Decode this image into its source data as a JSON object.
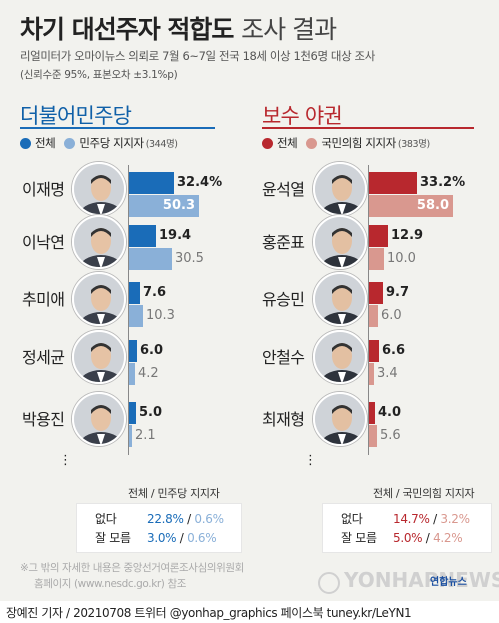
{
  "header": {
    "title_bold": "차기 대선주자 적합도",
    "title_light": "조사 결과",
    "subtitle": "리얼미터가 오마이뉴스 의뢰로 7월 6~7일 전국 18세 이상 1천6명 대상 조사",
    "confidence": "(신뢰수준 95%, 표본오차 ±3.1%p)"
  },
  "colors": {
    "dem_dark": "#1a6cb8",
    "dem_light": "#8ab0d8",
    "con_dark": "#b8282e",
    "con_light": "#d9988f"
  },
  "chart_data": [
    {
      "type": "bar",
      "title": "더불어민주당",
      "categories": [
        "이재명",
        "이낙연",
        "추미애",
        "정세균",
        "박용진"
      ],
      "series": [
        {
          "name": "전체",
          "values": [
            32.4,
            19.4,
            7.6,
            6.0,
            5.0
          ]
        },
        {
          "name": "민주당 지지자",
          "values": [
            50.3,
            30.5,
            10.3,
            4.2,
            2.1
          ]
        }
      ],
      "value_labels": [
        [
          "32.4%",
          "50.3"
        ],
        [
          "19.4",
          "30.5"
        ],
        [
          "7.6",
          "10.3"
        ],
        [
          "6.0",
          "4.2"
        ],
        [
          "5.0",
          "2.1"
        ]
      ],
      "legend": [
        "전체",
        "민주당 지지자",
        "(344명)"
      ],
      "table": {
        "header": "전체 / 민주당 지지자",
        "rows": [
          {
            "label": "없다",
            "total": "22.8%",
            "sep": " / ",
            "supporters": "0.6%"
          },
          {
            "label": "잘 모름",
            "total": "3.0%",
            "sep": " / ",
            "supporters": "0.6%"
          }
        ]
      }
    },
    {
      "type": "bar",
      "title": "보수 야권",
      "categories": [
        "윤석열",
        "홍준표",
        "유승민",
        "안철수",
        "최재형"
      ],
      "series": [
        {
          "name": "전체",
          "values": [
            33.2,
            12.9,
            9.7,
            6.6,
            4.0
          ]
        },
        {
          "name": "국민의힘 지지자",
          "values": [
            58.0,
            10.0,
            6.0,
            3.4,
            5.6
          ]
        }
      ],
      "value_labels": [
        [
          "33.2%",
          "58.0"
        ],
        [
          "12.9",
          "10.0"
        ],
        [
          "9.7",
          "6.0"
        ],
        [
          "6.6",
          "3.4"
        ],
        [
          "4.0",
          "5.6"
        ]
      ],
      "legend": [
        "전체",
        "국민의힘 지지자",
        "(383명)"
      ],
      "table": {
        "header": "전체 / 국민의힘 지지자",
        "rows": [
          {
            "label": "없다",
            "total": "14.7%",
            "sep": " / ",
            "supporters": "3.2%"
          },
          {
            "label": "잘 모름",
            "total": "5.0%",
            "sep": " / ",
            "supporters": "4.2%"
          }
        ]
      }
    }
  ],
  "more_marker": "⋮",
  "note_line1": "※그 밖의 자세한 내용은 중앙선거여론조사심의위원회",
  "note_line2": "홈페이지 (www.nesdc.go.kr) 참조",
  "watermark": "YONHAPNEWS",
  "watermark_logo": "연합뉴스",
  "footer": "장예진 기자 / 20210708 트위터 @yonhap_graphics  페이스북 tuney.kr/LeYN1"
}
